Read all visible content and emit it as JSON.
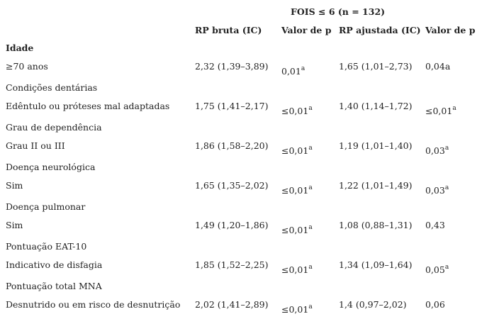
{
  "header": {
    "title": "FOIS ≤ 6 (n = 132)",
    "columns": [
      "RP bruta (IC)",
      "Valor de p",
      "RP ajustada (IC)",
      "Valor de p"
    ]
  },
  "table": {
    "sections": [
      {
        "title": "Idade",
        "rows": [
          {
            "label": "≥70 anos",
            "cells": [
              "2,32 (1,39–3,89)",
              {
                "text": "0,01",
                "sup": "a"
              },
              "1,65 (1,01–2,73)",
              "0,04a"
            ]
          }
        ]
      },
      {
        "title": "Condições dentárias",
        "rows": [
          {
            "label": "Edêntulo ou próteses mal adaptadas",
            "cells": [
              "1,75 (1,41–2,17)",
              {
                "text": "≤0,01",
                "sup": "a"
              },
              "1,40 (1,14–1,72)",
              {
                "text": "≤0,01",
                "sup": "a"
              }
            ]
          }
        ]
      },
      {
        "title": "Grau de dependência",
        "rows": [
          {
            "label": "Grau II ou III",
            "cells": [
              "1,86 (1,58–2,20)",
              {
                "text": "≤0,01",
                "sup": "a"
              },
              "1,19 (1,01–1,40)",
              {
                "text": "0,03",
                "sup": "a"
              }
            ]
          }
        ]
      },
      {
        "title": "Doença neurológica",
        "rows": [
          {
            "label": "Sim",
            "cells": [
              "1,65 (1,35–2,02)",
              {
                "text": "≤0,01",
                "sup": "a"
              },
              "1,22 (1,01–1,49)",
              {
                "text": "0,03",
                "sup": "a"
              }
            ]
          }
        ]
      },
      {
        "title": "Doença pulmonar",
        "rows": [
          {
            "label": "Sim",
            "cells": [
              "1,49 (1,20–1,86)",
              {
                "text": "≤0,01",
                "sup": "a"
              },
              "1,08 (0,88–1,31)",
              "0,43"
            ]
          }
        ]
      },
      {
        "title": "Pontuação EAT-10",
        "rows": [
          {
            "label": "Indicativo de disfagia",
            "cells": [
              "1,85 (1,52–2,25)",
              {
                "text": "≤0,01",
                "sup": "a"
              },
              "1,34 (1,09–1,64)",
              {
                "text": "0,05",
                "sup": "a"
              }
            ]
          }
        ]
      },
      {
        "title": "Pontuação total MNA",
        "rows": [
          {
            "label": "Desnutrido ou em risco de desnutrição",
            "cells": [
              "2,02 (1,41–2,89)",
              {
                "text": "≤0,01",
                "sup": "a"
              },
              "1,4 (0,97–2,02)",
              "0,06"
            ]
          }
        ]
      }
    ]
  }
}
